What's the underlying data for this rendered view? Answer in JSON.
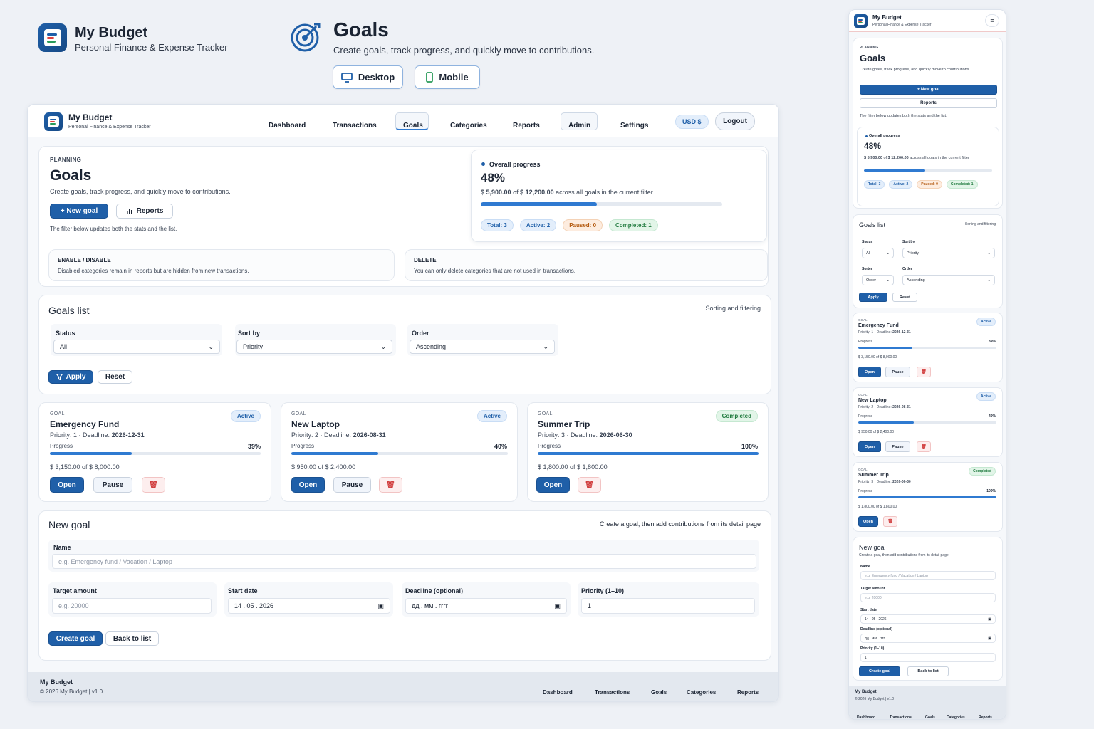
{
  "header": {
    "brand_title": "My Budget",
    "brand_subtitle": "Personal Finance & Expense Tracker",
    "page_title": "Goals",
    "page_subtitle": "Create goals, track progress, and quickly move to contributions.",
    "view_desktop": "Desktop",
    "view_mobile": "Mobile"
  },
  "app": {
    "brand_title": "My Budget",
    "brand_subtitle": "Personal Finance & Expense Tracker",
    "nav": [
      "Dashboard",
      "Transactions",
      "Goals",
      "Categories",
      "Reports",
      "Admin",
      "Settings"
    ],
    "currency": "USD $",
    "logout": "Logout"
  },
  "hero": {
    "eyebrow": "PLANNING",
    "title": "Goals",
    "subtitle": "Create goals, track progress, and quickly move to contributions.",
    "new_goal": "+ New goal",
    "reports": "Reports",
    "filter_note": "The filter below updates both the stats and the list."
  },
  "overall": {
    "label": "Overall progress",
    "percent": "48%",
    "percent_value": 48,
    "saved": "$ 5,900.00",
    "of": "of",
    "target": "$ 12,200.00",
    "suffix": "across all goals in the current filter",
    "badges": [
      "Total: 3",
      "Active: 2",
      "Paused: 0",
      "Completed: 1"
    ]
  },
  "info": {
    "enable_title": "ENABLE / DISABLE",
    "enable_text": "Disabled categories remain in reports but are hidden from new transactions.",
    "delete_title": "DELETE",
    "delete_text": "You can only delete categories that are not used in transactions."
  },
  "list": {
    "title": "Goals list",
    "hint": "Sorting and filtering",
    "status_label": "Status",
    "status_value": "All",
    "sort_label": "Sort by",
    "sort_value": "Priority",
    "order_label": "Order",
    "order_value": "Ascending",
    "apply": "Apply",
    "reset": "Reset"
  },
  "goals": [
    {
      "tag": "GOAL",
      "name": "Emergency Fund",
      "status": "Active",
      "priority": "Priority: 1",
      "deadline_label": "Deadline:",
      "deadline": "2026-12-31",
      "progress_label": "Progress",
      "percent": "39%",
      "percent_value": 39,
      "amounts": "$ 3,150.00 of $ 8,000.00",
      "open": "Open",
      "pause": "Pause"
    },
    {
      "tag": "GOAL",
      "name": "New Laptop",
      "status": "Active",
      "priority": "Priority: 2",
      "deadline_label": "Deadline:",
      "deadline": "2026-08-31",
      "progress_label": "Progress",
      "percent": "40%",
      "percent_value": 40,
      "amounts": "$ 950.00 of $ 2,400.00",
      "open": "Open",
      "pause": "Pause"
    },
    {
      "tag": "GOAL",
      "name": "Summer Trip",
      "status": "Completed",
      "priority": "Priority: 3",
      "deadline_label": "Deadline:",
      "deadline": "2026-06-30",
      "progress_label": "Progress",
      "percent": "100%",
      "percent_value": 100,
      "amounts": "$ 1,800.00 of $ 1,800.00",
      "open": "Open",
      "pause": ""
    }
  ],
  "form": {
    "title": "New goal",
    "hint": "Create a goal, then add contributions from its detail page",
    "name_label": "Name",
    "name_placeholder": "e.g. Emergency fund / Vacation / Laptop",
    "target_label": "Target amount",
    "target_placeholder": "e.g. 20000",
    "start_label": "Start date",
    "start_value": "14 . 05 . 2026",
    "deadline_label": "Deadline (optional)",
    "deadline_value": "дд . мм . гггг",
    "priority_label": "Priority (1–10)",
    "priority_value": "1",
    "create": "Create goal",
    "back": "Back to list"
  },
  "footer": {
    "title": "My Budget",
    "copy": "© 2026 My Budget  |  v1.0",
    "links": [
      "Dashboard",
      "Transactions",
      "Goals",
      "Categories",
      "Reports"
    ]
  },
  "mobile": {
    "sort_label": "Sort by",
    "sort_value": "Priority",
    "sorter_label": "Sorter",
    "sorter_value": "Order",
    "order_label": "Order",
    "order_value": "Ascending",
    "create_hint": "Create a goal, then add contributions from its detail page"
  },
  "colors": {
    "accent": "#1f5fa8",
    "progress": "#2f7ad1",
    "danger": "#d03a3a"
  }
}
